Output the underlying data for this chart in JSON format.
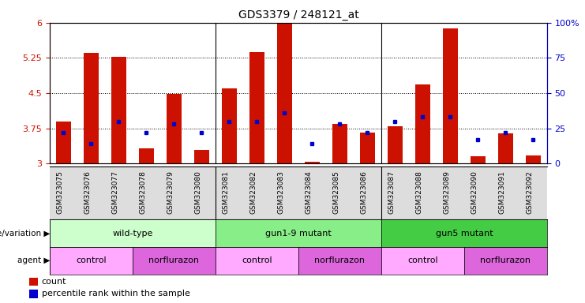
{
  "title": "GDS3379 / 248121_at",
  "samples": [
    "GSM323075",
    "GSM323076",
    "GSM323077",
    "GSM323078",
    "GSM323079",
    "GSM323080",
    "GSM323081",
    "GSM323082",
    "GSM323083",
    "GSM323084",
    "GSM323085",
    "GSM323086",
    "GSM323087",
    "GSM323088",
    "GSM323089",
    "GSM323090",
    "GSM323091",
    "GSM323092"
  ],
  "counts": [
    3.9,
    5.35,
    5.27,
    3.32,
    4.49,
    3.3,
    4.6,
    5.38,
    5.99,
    3.04,
    3.85,
    3.66,
    3.79,
    4.68,
    5.88,
    3.15,
    3.65,
    3.17
  ],
  "percentile_ranks": [
    22,
    14,
    30,
    22,
    28,
    22,
    30,
    30,
    36,
    14,
    28,
    22,
    30,
    33,
    33,
    17,
    22,
    17
  ],
  "bar_color": "#cc1100",
  "dot_color": "#0000cc",
  "ymin": 3.0,
  "ymax": 6.0,
  "yticks": [
    3.0,
    3.75,
    4.5,
    5.25,
    6.0
  ],
  "yticklabels": [
    "3",
    "3.75",
    "4.5",
    "5.25",
    "6"
  ],
  "right_yticks": [
    0,
    25,
    50,
    75,
    100
  ],
  "right_yticklabels": [
    "0",
    "25",
    "50",
    "75",
    "100%"
  ],
  "genotype_groups": [
    {
      "label": "wild-type",
      "start": 0,
      "end": 6,
      "color": "#ccffcc"
    },
    {
      "label": "gun1-9 mutant",
      "start": 6,
      "end": 12,
      "color": "#88ee88"
    },
    {
      "label": "gun5 mutant",
      "start": 12,
      "end": 18,
      "color": "#44cc44"
    }
  ],
  "agent_groups": [
    {
      "label": "control",
      "start": 0,
      "end": 3,
      "color": "#ffaaff"
    },
    {
      "label": "norflurazon",
      "start": 3,
      "end": 6,
      "color": "#dd66dd"
    },
    {
      "label": "control",
      "start": 6,
      "end": 9,
      "color": "#ffaaff"
    },
    {
      "label": "norflurazon",
      "start": 9,
      "end": 12,
      "color": "#dd66dd"
    },
    {
      "label": "control",
      "start": 12,
      "end": 15,
      "color": "#ffaaff"
    },
    {
      "label": "norflurazon",
      "start": 15,
      "end": 18,
      "color": "#dd66dd"
    }
  ],
  "genotype_label": "genotype/variation",
  "agent_label": "agent",
  "legend_count_label": "count",
  "legend_percentile_label": "percentile rank within the sample",
  "bar_width": 0.55,
  "xtick_bg_color": "#dddddd",
  "figure_bg": "#ffffff"
}
